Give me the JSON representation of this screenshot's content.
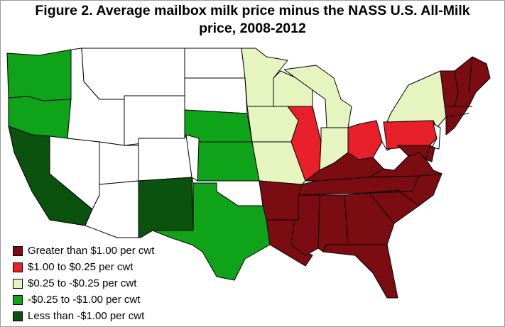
{
  "title_line1": "Figure 2. Average mailbox milk price minus the NASS U.S. All-Milk",
  "title_line2": "price, 2008-2012",
  "colors": {
    "cat1": "#7b0c11",
    "cat2": "#e8202a",
    "cat3": "#e6f5c0",
    "cat4": "#0ea318",
    "cat5": "#0a520e",
    "none": "#ffffff",
    "border": "#000000"
  },
  "legend": [
    {
      "key": "cat1",
      "label": "Greater than $1.00 per cwt"
    },
    {
      "key": "cat2",
      "label": "$1.00 to $0.25 per cwt"
    },
    {
      "key": "cat3",
      "label": "$0.25 to -$0.25 per cwt"
    },
    {
      "key": "cat4",
      "label": "-$0.25 to -$1.00 per cwt"
    },
    {
      "key": "cat5",
      "label": "Less than -$1.00 per cwt"
    }
  ],
  "states": {
    "WA": "cat4",
    "OR": "cat4",
    "CA": "cat5",
    "NV": "none",
    "ID": "none",
    "MT": "none",
    "WY": "none",
    "UT": "none",
    "AZ": "none",
    "CO": "none",
    "NM": "cat5",
    "ND": "none",
    "SD": "none",
    "NE": "cat4",
    "KS": "cat4",
    "OK": "none",
    "TX": "cat4",
    "MN": "cat3",
    "IA": "cat3",
    "MO": "cat3",
    "AR": "cat1",
    "LA": "cat1",
    "WI": "cat3",
    "IL": "cat2",
    "MI": "cat3",
    "IN": "cat3",
    "OH": "cat2",
    "KY": "cat1",
    "TN": "cat1",
    "MS": "cat1",
    "AL": "cat1",
    "GA": "cat1",
    "FL": "cat1",
    "SC": "cat1",
    "NC": "cat1",
    "VA": "cat1",
    "WV": "none",
    "PA": "cat2",
    "NY": "cat3",
    "NJ": "none",
    "MD": "cat1",
    "DE": "cat1",
    "NE_States": "cat1"
  }
}
